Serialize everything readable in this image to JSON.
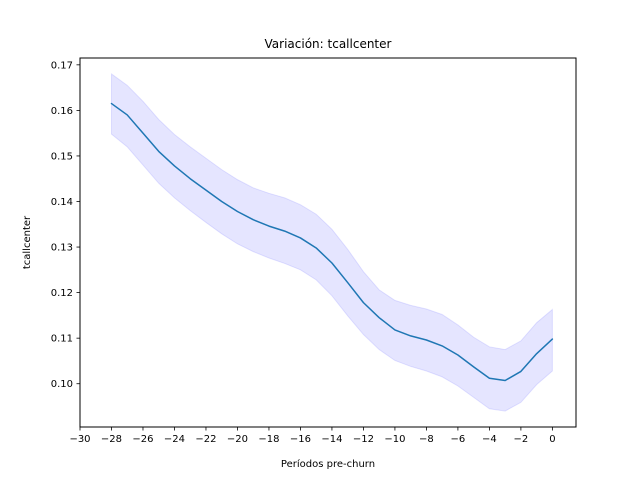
{
  "chart_data": {
    "type": "line",
    "title": "Variación: tcallcenter",
    "xlabel": "Períodos pre-churn",
    "ylabel": "tcallcenter",
    "xlim": [
      -30,
      1.5
    ],
    "ylim": [
      0.0905,
      0.1715
    ],
    "xticks": [
      -30,
      -28,
      -26,
      -24,
      -22,
      -20,
      -18,
      -16,
      -14,
      -12,
      -10,
      -8,
      -6,
      -4,
      -2,
      0
    ],
    "xtick_labels": [
      "−30",
      "−28",
      "−26",
      "−24",
      "−22",
      "−20",
      "−18",
      "−16",
      "−14",
      "−12",
      "−10",
      "−8",
      "−6",
      "−4",
      "−2",
      "0"
    ],
    "yticks": [
      0.1,
      0.11,
      0.12,
      0.13,
      0.14,
      0.15,
      0.16,
      0.17
    ],
    "ytick_labels": [
      "0.10",
      "0.11",
      "0.12",
      "0.13",
      "0.14",
      "0.15",
      "0.16",
      "0.17"
    ],
    "grid": false,
    "series": [
      {
        "color": "#1f77b4",
        "band_color": "#0000ff",
        "x": [
          -28,
          -27,
          -26,
          -25,
          -24,
          -23,
          -22,
          -21,
          -20,
          -19,
          -18,
          -17,
          -16,
          -15,
          -14,
          -13,
          -12,
          -11,
          -10,
          -9,
          -8,
          -7,
          -6,
          -5,
          -4,
          -3,
          -2,
          -1,
          0
        ],
        "y": [
          0.1615,
          0.159,
          0.155,
          0.151,
          0.1478,
          0.145,
          0.1425,
          0.14,
          0.1378,
          0.136,
          0.1346,
          0.1335,
          0.132,
          0.1298,
          0.1265,
          0.1222,
          0.1178,
          0.1145,
          0.1118,
          0.1105,
          0.1096,
          0.1083,
          0.1063,
          0.1037,
          0.1012,
          0.1007,
          0.1027,
          0.1066,
          0.1098
        ],
        "upper": [
          0.168,
          0.1655,
          0.162,
          0.158,
          0.1547,
          0.152,
          0.1495,
          0.147,
          0.1448,
          0.143,
          0.1418,
          0.1408,
          0.1393,
          0.1372,
          0.1339,
          0.1295,
          0.1246,
          0.1206,
          0.1183,
          0.1172,
          0.1164,
          0.1152,
          0.1129,
          0.1102,
          0.1081,
          0.1075,
          0.1094,
          0.1134,
          0.1163
        ],
        "lower": [
          0.1548,
          0.152,
          0.148,
          0.144,
          0.1408,
          0.138,
          0.1354,
          0.1329,
          0.1307,
          0.129,
          0.1276,
          0.1264,
          0.125,
          0.1228,
          0.1193,
          0.1149,
          0.1108,
          0.1075,
          0.1051,
          0.1038,
          0.1028,
          0.1015,
          0.0995,
          0.097,
          0.0945,
          0.094,
          0.0959,
          0.0998,
          0.1028
        ]
      }
    ]
  }
}
